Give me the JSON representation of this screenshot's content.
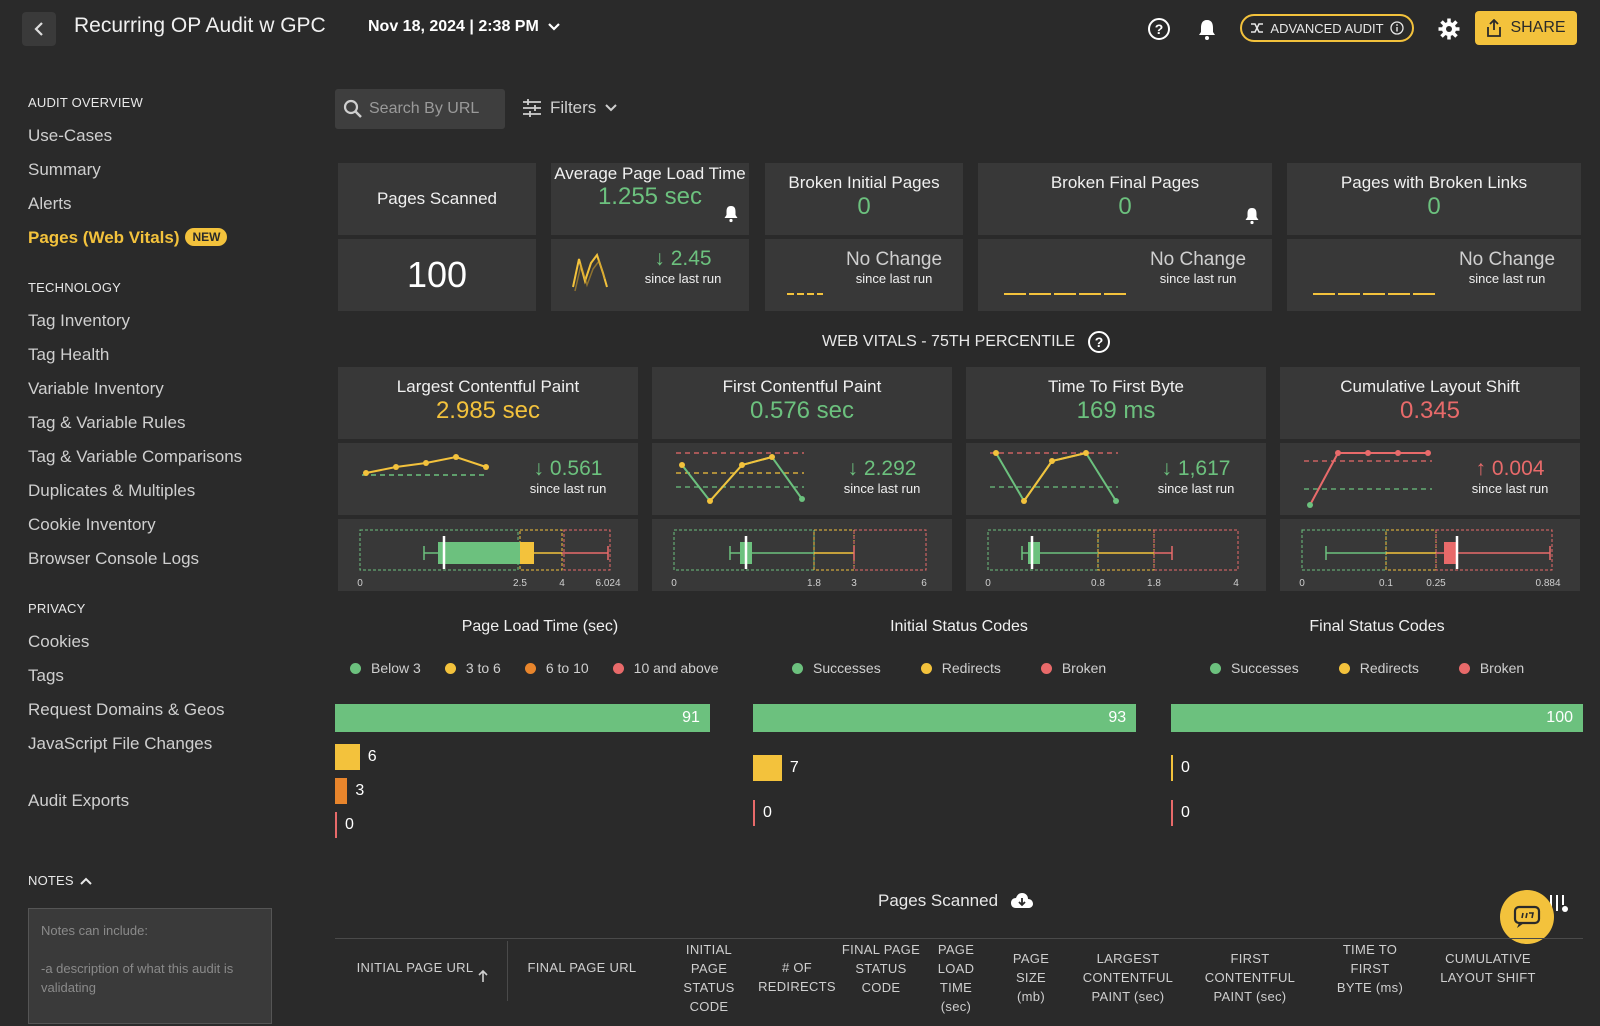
{
  "header": {
    "title": "Recurring OP Audit w GPC",
    "run_date": "Nov 18, 2024 | 2:38 PM",
    "advanced_label": "ADVANCED AUDIT",
    "share_label": "SHARE"
  },
  "sidebar": {
    "overview_head": "AUDIT OVERVIEW",
    "overview_items": [
      "Use-Cases",
      "Summary",
      "Alerts",
      "Pages (Web Vitals)"
    ],
    "new_badge": "NEW",
    "tech_head": "TECHNOLOGY",
    "tech_items": [
      "Tag Inventory",
      "Tag Health",
      "Variable Inventory",
      "Tag & Variable Rules",
      "Tag & Variable Comparisons",
      "Duplicates & Multiples",
      "Cookie Inventory",
      "Browser Console Logs"
    ],
    "privacy_head": "PRIVACY",
    "privacy_items": [
      "Cookies",
      "Tags",
      "Request Domains & Geos",
      "JavaScript File Changes"
    ],
    "exports": "Audit Exports",
    "notes_head": "NOTES",
    "notes_placeholder_1": "Notes can include:",
    "notes_placeholder_2": "-a description of what this audit is validating"
  },
  "toolbar": {
    "search_placeholder": "Search By URL",
    "filters_label": "Filters"
  },
  "summary": {
    "pages_scanned": {
      "label": "Pages Scanned",
      "value": "100"
    },
    "avg_load": {
      "label": "Average Page Load Time",
      "value": "1.255 sec",
      "delta": "2.45",
      "since": "since last run"
    },
    "broken_initial": {
      "label": "Broken Initial Pages",
      "value": "0",
      "change": "No Change",
      "since": "since last run"
    },
    "broken_final": {
      "label": "Broken Final Pages",
      "value": "0",
      "change": "No Change",
      "since": "since last run"
    },
    "broken_links": {
      "label": "Pages with Broken Links",
      "value": "0",
      "change": "No Change",
      "since": "since last run"
    }
  },
  "web_vitals": {
    "heading": "WEB VITALS - 75TH PERCENTILE",
    "cards": [
      {
        "label": "Largest Contentful Paint",
        "value": "2.985 sec",
        "delta": "0.561",
        "direction": "down",
        "since": "since last run",
        "ticks": [
          "0",
          "2.5",
          "4",
          "6.024"
        ]
      },
      {
        "label": "First Contentful Paint",
        "value": "0.576 sec",
        "delta": "2.292",
        "direction": "down",
        "since": "since last run",
        "ticks": [
          "0",
          "1.8",
          "3",
          "6"
        ]
      },
      {
        "label": "Time To First Byte",
        "value": "169 ms",
        "delta": "1,617",
        "direction": "down",
        "since": "since last run",
        "ticks": [
          "0",
          "0.8",
          "1.8",
          "4"
        ]
      },
      {
        "label": "Cumulative Layout Shift",
        "value": "0.345",
        "delta": "0.004",
        "direction": "up",
        "since": "since last run",
        "ticks": [
          "0",
          "0.1",
          "0.25",
          "0.884"
        ]
      }
    ]
  },
  "distributions": {
    "load_time": {
      "title": "Page Load Time (sec)",
      "legend": [
        "Below 3",
        "3 to 6",
        "6 to 10",
        "10 and above"
      ],
      "values": [
        91,
        6,
        3,
        0
      ]
    },
    "initial_status": {
      "title": "Initial Status Codes",
      "legend": [
        "Successes",
        "Redirects",
        "Broken"
      ],
      "values": [
        93,
        7,
        0
      ]
    },
    "final_status": {
      "title": "Final Status Codes",
      "legend": [
        "Successes",
        "Redirects",
        "Broken"
      ],
      "values": [
        100,
        0,
        0
      ]
    }
  },
  "colors": {
    "green": "#6cc17e",
    "yellow": "#f3c23c",
    "orange": "#e8852c",
    "red": "#e86a6a"
  },
  "table": {
    "title": "Pages Scanned",
    "headers": [
      "INITIAL PAGE URL",
      "FINAL PAGE URL",
      "INITIAL PAGE STATUS CODE",
      "# OF REDIRECTS",
      "FINAL PAGE STATUS CODE",
      "PAGE LOAD TIME (sec)",
      "PAGE SIZE (mb)",
      "LARGEST CONTENTFUL PAINT (sec)",
      "FIRST CONTENTFUL PAINT (sec)",
      "TIME TO FIRST BYTE (ms)",
      "CUMULATIVE LAYOUT SHIFT"
    ]
  }
}
